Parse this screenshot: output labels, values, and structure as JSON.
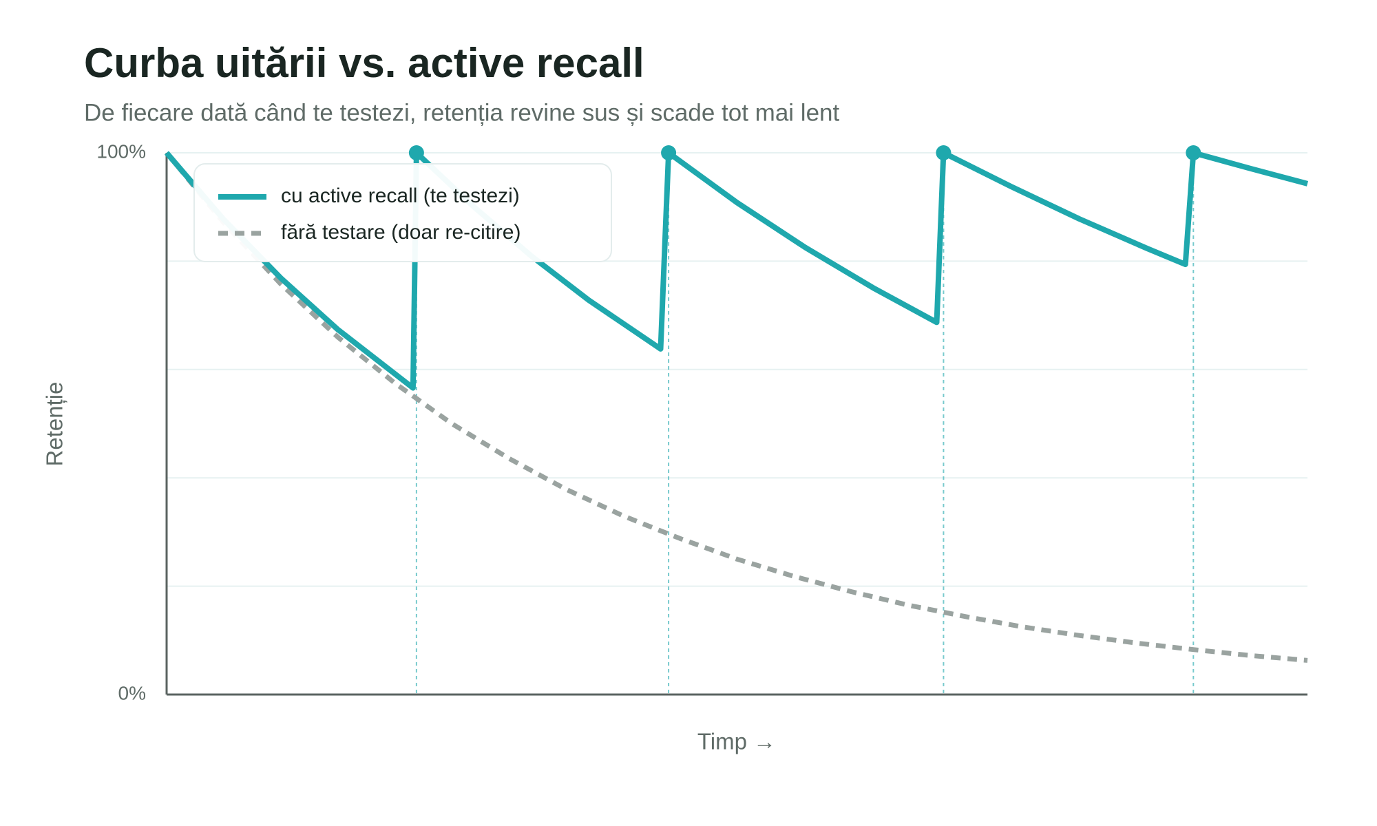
{
  "chart_data": {
    "type": "line",
    "title": "Curba uitării vs. active recall",
    "subtitle": "De fiecare dată când te testezi, retenția revine sus și scade tot mai lent",
    "xlabel": "Timp →",
    "ylabel": "Retenție",
    "xlim": [
      0,
      100
    ],
    "ylim": [
      0,
      100
    ],
    "yticks": [
      {
        "value": 0,
        "label": "0%"
      },
      {
        "value": 100,
        "label": "100%"
      }
    ],
    "yticks_minor": [
      20,
      40,
      60,
      80
    ],
    "grid": true,
    "legend": "top-left",
    "series": [
      {
        "name": "cu active recall (te testezi)",
        "color": "#1fa8ad",
        "dashed": false,
        "x": [
          0,
          5,
          10,
          15,
          21.6,
          21.9,
          27,
          32,
          37,
          43.3,
          44.0,
          50,
          56,
          62,
          67.5,
          68.1,
          74,
          80,
          86,
          89.3,
          90.0,
          95,
          100
        ],
        "values": [
          100,
          87.7,
          76.9,
          67.4,
          56.6,
          100,
          89.9,
          80.9,
          72.8,
          63.8,
          100,
          90.8,
          82.5,
          75.0,
          68.7,
          100,
          93.8,
          87.8,
          82.3,
          79.4,
          100,
          97.1,
          94.3
        ]
      },
      {
        "name": "fără testare (doar re-citire)",
        "color": "#9aa3a0",
        "dashed": true,
        "x": [
          0,
          5,
          10,
          15,
          20,
          25,
          30,
          35,
          40,
          45,
          50,
          55,
          60,
          65,
          70,
          75,
          80,
          85,
          90,
          95,
          100
        ],
        "values": [
          100,
          87.1,
          75.8,
          66.0,
          57.5,
          50.0,
          43.6,
          37.9,
          33.0,
          28.8,
          25.0,
          21.8,
          19.0,
          16.5,
          14.4,
          12.5,
          10.9,
          9.5,
          8.3,
          7.2,
          6.3
        ]
      }
    ],
    "test_points": {
      "color": "#1fa8ad",
      "x": [
        21.9,
        44.0,
        68.1,
        90.0
      ],
      "y": [
        100,
        100,
        100,
        100
      ]
    }
  }
}
